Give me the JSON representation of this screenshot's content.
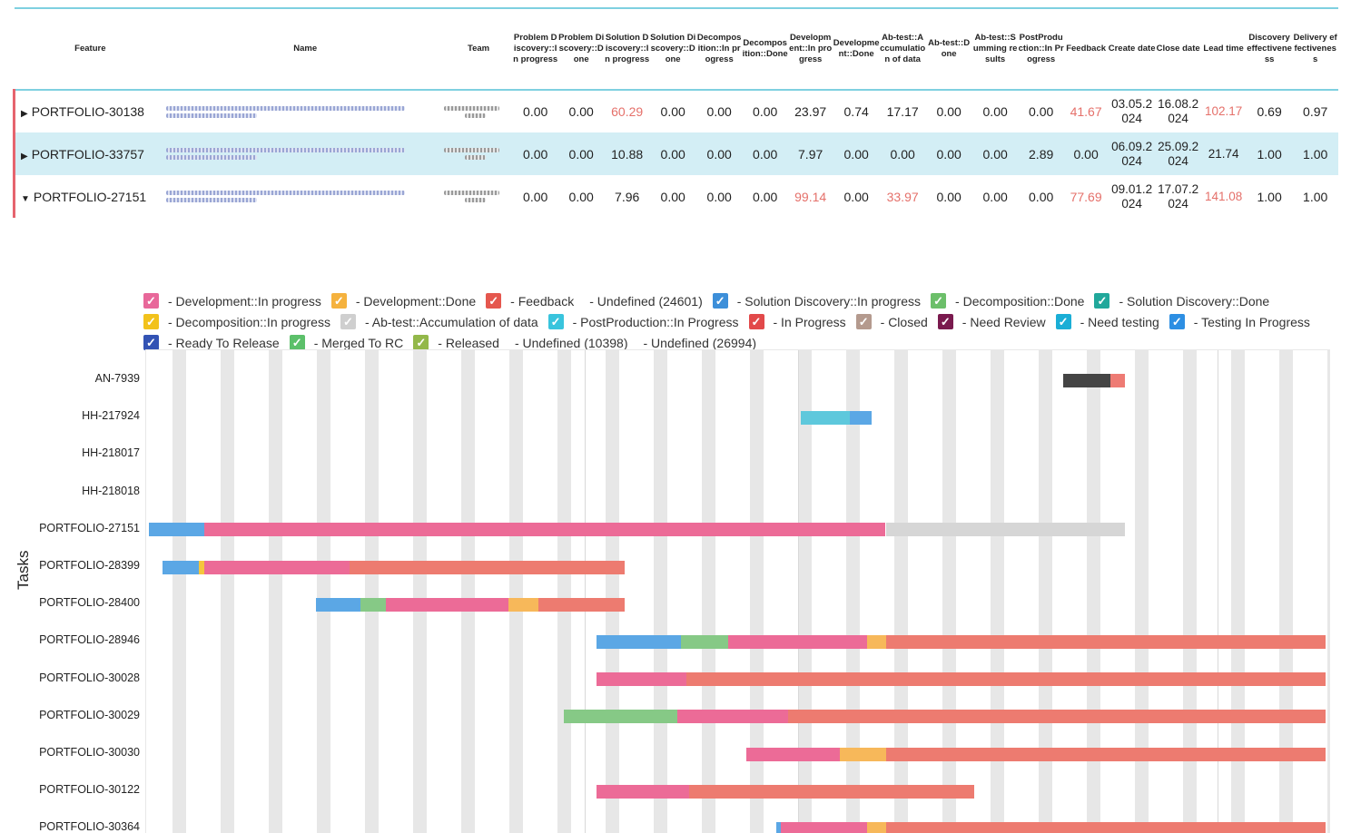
{
  "table": {
    "headers": [
      "Feature",
      "Name",
      "Team",
      "Problem Discovery::In progress",
      "Problem Discovery::Done",
      "Solution Discovery::In progress",
      "Solution Discovery::Done",
      "Decomposition::In progress",
      "Decomposition::Done",
      "Development::In progress",
      "Development::Done",
      "Ab-test::Accumulation of data",
      "Ab-test::Done",
      "Ab-test::Summing results",
      "PostProduction::In Progress",
      "Feedback",
      "Create date",
      "Close date",
      "Lead time",
      "Discovery effectiveness",
      "Delivery effectiveness"
    ],
    "rows": [
      {
        "feature": "PORTFOLIO-30138",
        "expanded": false,
        "selected": false,
        "values": [
          "0.00",
          "0.00",
          "60.29",
          "0.00",
          "0.00",
          "0.00",
          "23.97",
          "0.74",
          "17.17",
          "0.00",
          "0.00",
          "0.00",
          "41.67"
        ],
        "create": "03.05.2024",
        "close": "16.08.2024",
        "lead": "102.17",
        "disc": "0.69",
        "deliv": "0.97",
        "highlight": [
          2,
          12
        ],
        "lead_hi": true
      },
      {
        "feature": "PORTFOLIO-33757",
        "expanded": false,
        "selected": true,
        "values": [
          "0.00",
          "0.00",
          "10.88",
          "0.00",
          "0.00",
          "0.00",
          "7.97",
          "0.00",
          "0.00",
          "0.00",
          "0.00",
          "2.89",
          "0.00"
        ],
        "create": "06.09.2024",
        "close": "25.09.2024",
        "lead": "21.74",
        "disc": "1.00",
        "deliv": "1.00",
        "highlight": [],
        "lead_hi": false
      },
      {
        "feature": "PORTFOLIO-27151",
        "expanded": true,
        "selected": false,
        "values": [
          "0.00",
          "0.00",
          "7.96",
          "0.00",
          "0.00",
          "0.00",
          "99.14",
          "0.00",
          "33.97",
          "0.00",
          "0.00",
          "0.00",
          "77.69"
        ],
        "create": "09.01.2024",
        "close": "17.07.2024",
        "lead": "141.08",
        "disc": "1.00",
        "deliv": "1.00",
        "highlight": [
          6,
          8,
          12
        ],
        "lead_hi": true
      }
    ]
  },
  "legend": [
    [
      {
        "label": "- Development::In progress",
        "color": "#e8689a"
      },
      {
        "label": "- Development::Done",
        "color": "#f5b23e"
      },
      {
        "label": "- Feedback",
        "color": "#e5574e"
      },
      {
        "label": "- Undefined (24601)",
        "color": null
      },
      {
        "label": "- Solution Discovery::In progress",
        "color": "#3d8fd9"
      },
      {
        "label": "- Decomposition::Done",
        "color": "#6cbf6a"
      },
      {
        "label": "- Solution Discovery::Done",
        "color": "#21a89b"
      }
    ],
    [
      {
        "label": "- Decomposition::In progress",
        "color": "#f2c21b"
      },
      {
        "label": "- Ab-test::Accumulation of data",
        "color": "#cfcfcf"
      },
      {
        "label": "- PostProduction::In Progress",
        "color": "#39c4dd"
      },
      {
        "label": "- In Progress",
        "color": "#e2494a"
      },
      {
        "label": "- Closed",
        "color": "#b49a8e"
      },
      {
        "label": "- Need Review",
        "color": "#7a1a4e"
      },
      {
        "label": "- Need testing",
        "color": "#1aaed6"
      },
      {
        "label": "- Testing In Progress",
        "color": "#2d8fe3"
      }
    ],
    [
      {
        "label": "- Ready To Release",
        "color": "#3353b4"
      },
      {
        "label": "- Merged To RC",
        "color": "#5cc06a"
      },
      {
        "label": "- Released",
        "color": "#93b84a"
      },
      {
        "label": "- Undefined (10398)",
        "color": null
      },
      {
        "label": "- Undefined (26994)",
        "color": null
      }
    ]
  ],
  "gantt": {
    "y_title": "Tasks",
    "tasks": [
      {
        "name": "AN-7939",
        "segments": [
          {
            "s": 0.7749,
            "e": 0.8154,
            "c": "#444444"
          },
          {
            "s": 0.8154,
            "e": 0.8277,
            "c": "#ee7b74"
          }
        ]
      },
      {
        "name": "HH-217924",
        "segments": [
          {
            "s": 0.5534,
            "e": 0.5949,
            "c": "#5ec8dc"
          },
          {
            "s": 0.5949,
            "e": 0.6133,
            "c": "#5ba7e5"
          }
        ]
      },
      {
        "name": "HH-218017",
        "segments": []
      },
      {
        "name": "HH-218018",
        "segments": []
      },
      {
        "name": "PORTFOLIO-27151",
        "segments": [
          {
            "s": 0.0023,
            "e": 0.0491,
            "c": "#5ba7e5"
          },
          {
            "s": 0.0491,
            "e": 0.6251,
            "c": "#ec6b97"
          },
          {
            "s": 0.6251,
            "e": 0.8277,
            "c": "#d6d6d6"
          }
        ]
      },
      {
        "name": "PORTFOLIO-28399",
        "segments": [
          {
            "s": 0.0138,
            "e": 0.0445,
            "c": "#5ba7e5"
          },
          {
            "s": 0.0445,
            "e": 0.0491,
            "c": "#f5c53d"
          },
          {
            "s": 0.0491,
            "e": 0.1719,
            "c": "#ec6b97"
          },
          {
            "s": 0.1719,
            "e": 0.4045,
            "c": "#ed7b70"
          }
        ]
      },
      {
        "name": "PORTFOLIO-28400",
        "segments": [
          {
            "s": 0.1436,
            "e": 0.1812,
            "c": "#5ba7e5"
          },
          {
            "s": 0.1812,
            "e": 0.2026,
            "c": "#86c986"
          },
          {
            "s": 0.2026,
            "e": 0.3066,
            "c": "#ec6b97"
          },
          {
            "s": 0.3066,
            "e": 0.3312,
            "c": "#f7b85a"
          },
          {
            "s": 0.3312,
            "e": 0.4045,
            "c": "#ed7b70"
          }
        ]
      },
      {
        "name": "PORTFOLIO-28946",
        "segments": [
          {
            "s": 0.381,
            "e": 0.4524,
            "c": "#5ba7e5"
          },
          {
            "s": 0.4524,
            "e": 0.4923,
            "c": "#86c986"
          },
          {
            "s": 0.4923,
            "e": 0.6094,
            "c": "#ec6b97"
          },
          {
            "s": 0.6094,
            "e": 0.6251,
            "c": "#f7b85a"
          },
          {
            "s": 0.6251,
            "e": 0.9969,
            "c": "#ed7b70"
          }
        ]
      },
      {
        "name": "PORTFOLIO-30028",
        "segments": [
          {
            "s": 0.381,
            "e": 0.4566,
            "c": "#ec6b97"
          },
          {
            "s": 0.4566,
            "e": 0.9969,
            "c": "#ed7b70"
          }
        ]
      },
      {
        "name": "PORTFOLIO-30029",
        "segments": [
          {
            "s": 0.353,
            "e": 0.4493,
            "c": "#86c986"
          },
          {
            "s": 0.4493,
            "e": 0.5426,
            "c": "#ec6b97"
          },
          {
            "s": 0.5426,
            "e": 0.9969,
            "c": "#ed7b70"
          }
        ]
      },
      {
        "name": "PORTFOLIO-30030",
        "segments": [
          {
            "s": 0.5073,
            "e": 0.5867,
            "c": "#ec6b97"
          },
          {
            "s": 0.5867,
            "e": 0.6251,
            "c": "#f7b85a"
          },
          {
            "s": 0.6251,
            "e": 0.9969,
            "c": "#ed7b70"
          }
        ]
      },
      {
        "name": "PORTFOLIO-30122",
        "segments": [
          {
            "s": 0.381,
            "e": 0.4589,
            "c": "#ec6b97"
          },
          {
            "s": 0.4589,
            "e": 0.6999,
            "c": "#ed7b70"
          }
        ]
      },
      {
        "name": "PORTFOLIO-30364",
        "segments": [
          {
            "s": 0.5327,
            "e": 0.5366,
            "c": "#5ba7e5"
          },
          {
            "s": 0.5366,
            "e": 0.6094,
            "c": "#ec6b97"
          },
          {
            "s": 0.6094,
            "e": 0.6251,
            "c": "#f7b85a"
          },
          {
            "s": 0.6251,
            "e": 0.9969,
            "c": "#ed7b70"
          }
        ]
      }
    ]
  }
}
